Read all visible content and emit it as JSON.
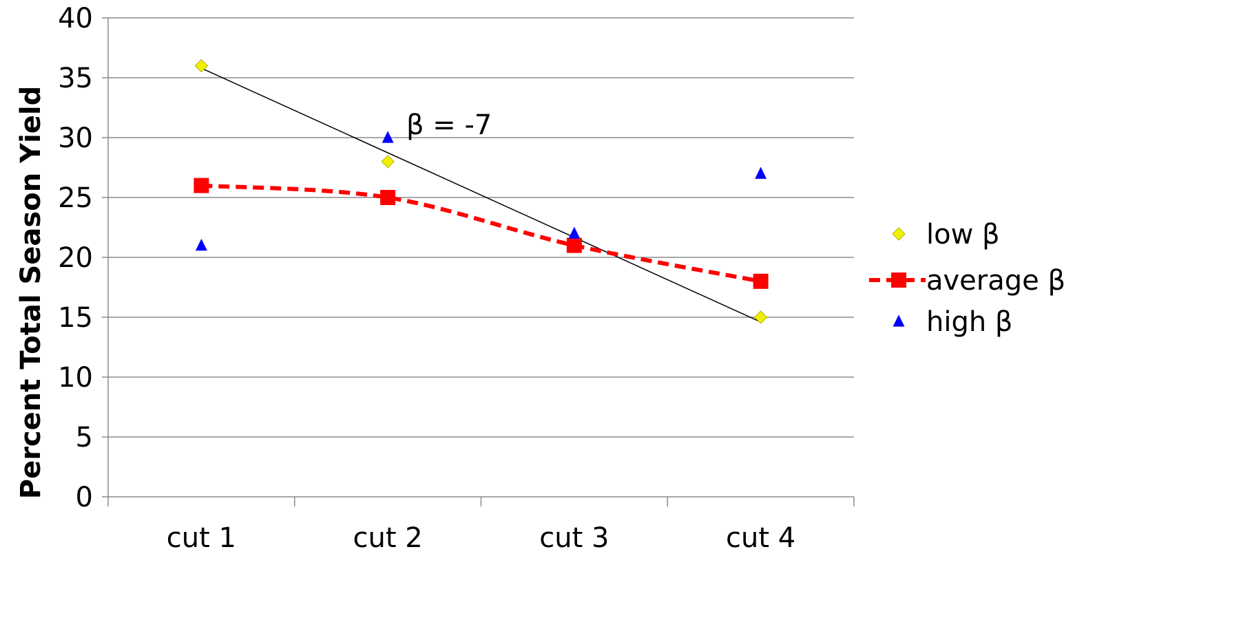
{
  "chart_data": {
    "type": "line",
    "categories": [
      "cut 1",
      "cut 2",
      "cut 3",
      "cut 4"
    ],
    "xlabel": "",
    "ylabel": "Percent Total Season Yield",
    "ylim": [
      0,
      40
    ],
    "yticks": [
      0,
      5,
      10,
      15,
      20,
      25,
      30,
      35,
      40
    ],
    "grid": "horizontal",
    "legend_position": "right",
    "series": [
      {
        "name": "low β",
        "marker": "diamond",
        "line": "none",
        "color": "#f0f000",
        "values": [
          36,
          28,
          21,
          15
        ]
      },
      {
        "name": "average β",
        "marker": "square",
        "line": "dashed-smooth",
        "color": "#ff0000",
        "values": [
          26,
          25,
          21,
          18
        ]
      },
      {
        "name": "high β",
        "marker": "triangle",
        "line": "none",
        "color": "#0000ff",
        "values": [
          21,
          30,
          22,
          27
        ]
      }
    ],
    "trendline": {
      "label": "β = -7",
      "color": "#000000",
      "start": {
        "category": "cut 1",
        "value": 35.8
      },
      "end": {
        "category": "cut 4",
        "value": 14.6
      }
    },
    "annotations": [
      "β = -7"
    ]
  }
}
